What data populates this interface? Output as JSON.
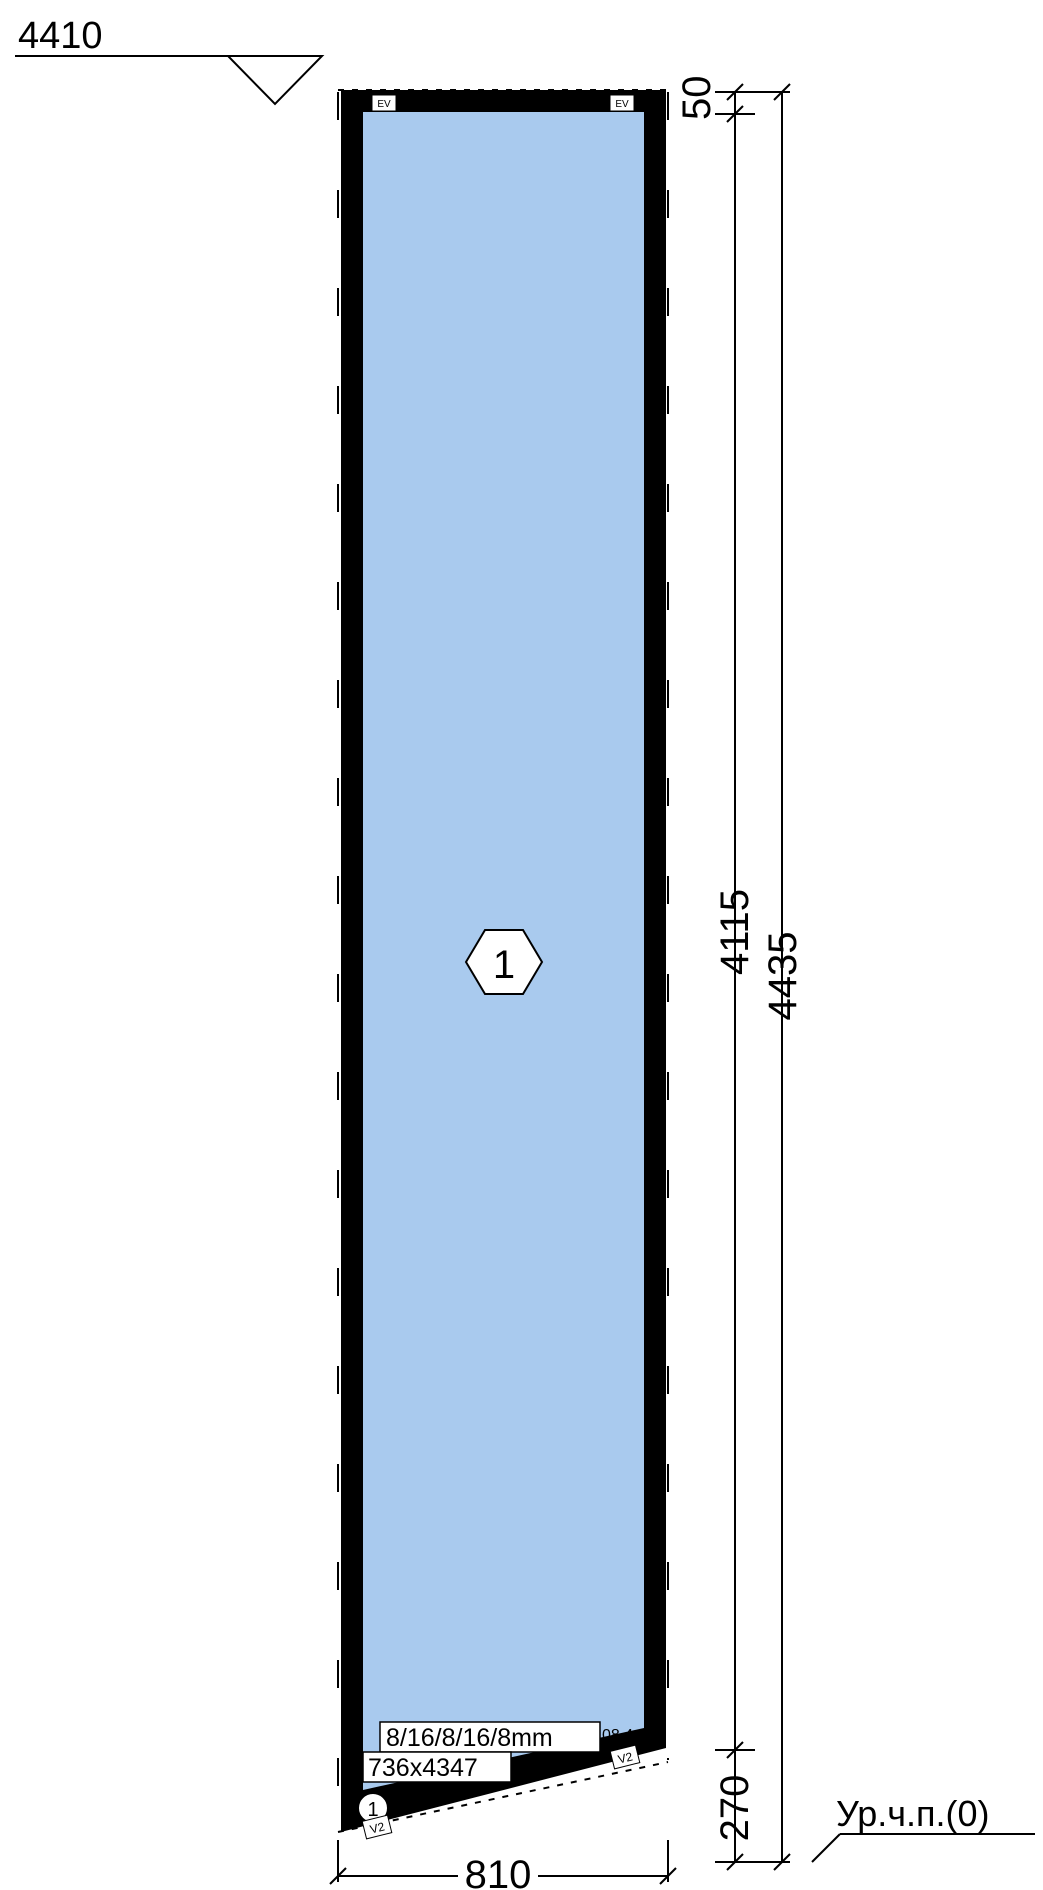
{
  "top_level_label": "4410",
  "floor_level_label": "Ур.ч.п.(0)",
  "dimensions": {
    "width": "810",
    "top_offset": "50",
    "glass_height": "4115",
    "bottom_offset": "270",
    "total_height": "4435"
  },
  "panel": {
    "number": "1",
    "glass_spec": "8/16/8/16/8mm",
    "glass_size": "736x4347",
    "extra_value": "08,4",
    "support_marker": "1"
  },
  "tags": {
    "ev_left": "EV",
    "ev_right": "EV",
    "v2_right": "V2",
    "v2_left": "V2"
  },
  "colors": {
    "glass_fill": "#a9caee",
    "frame": "#000000",
    "background": "#ffffff"
  },
  "icons": {
    "level_marker": "triangle-down-icon",
    "panel_marker": "hexagon-icon",
    "support_marker": "circle-icon"
  }
}
